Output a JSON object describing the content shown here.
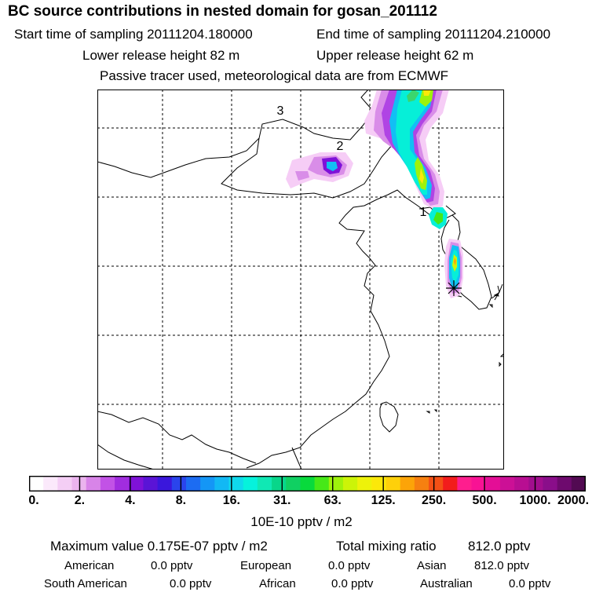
{
  "header": {
    "title": "BC  source contributions in nested domain for gosan_201112",
    "start_time": "Start time of sampling 20111204.180000",
    "end_time": "End time of sampling 20111204.210000",
    "lower_height": "Lower release height   82 m",
    "upper_height": "Upper release height   62 m",
    "tracer_note": "Passive tracer used, meteorological data are from ECMWF"
  },
  "map": {
    "labels": [
      "3",
      "2",
      "1"
    ]
  },
  "colorbar": {
    "ticks": [
      "0.",
      "2.",
      "4.",
      "8.",
      "16.",
      "31.",
      "63.",
      "125.",
      "250.",
      "500.",
      "1000.",
      "2000."
    ],
    "colors": [
      "#ffffff",
      "#fbe9fb",
      "#f4cef5",
      "#ebb4ee",
      "#d884e8",
      "#c252e6",
      "#a12ddf",
      "#7f12d8",
      "#5a14d6",
      "#3a17dc",
      "#2a44ec",
      "#1c6cf2",
      "#1496f6",
      "#12b8f4",
      "#10d8ec",
      "#06f2dc",
      "#10e8b4",
      "#08d68a",
      "#10d062",
      "#08da3c",
      "#46e818",
      "#9ef20c",
      "#ccf408",
      "#eef20a",
      "#fbe80a",
      "#fed00a",
      "#fca408",
      "#f68010",
      "#f45016",
      "#f21c1c",
      "#fe1e8e",
      "#f81294",
      "#e40e96",
      "#cc1096",
      "#b80e92",
      "#a10e8e",
      "#8a0e8a",
      "#6e0a6e",
      "#520a52"
    ],
    "unit": "10E-10 pptv / m2"
  },
  "summary": {
    "maximum": "Maximum value  0.175E-07 pptv / m2",
    "total_label": "Total mixing ratio",
    "total_value": "812.0 pptv"
  },
  "regions": [
    {
      "name": "American",
      "value": "0.0 pptv"
    },
    {
      "name": "European",
      "value": "0.0 pptv"
    },
    {
      "name": "Asian",
      "value": "812.0 pptv"
    },
    {
      "name": "South American",
      "value": "0.0 pptv"
    },
    {
      "name": "African",
      "value": "0.0 pptv"
    },
    {
      "name": "Australian",
      "value": "0.0 pptv"
    }
  ]
}
